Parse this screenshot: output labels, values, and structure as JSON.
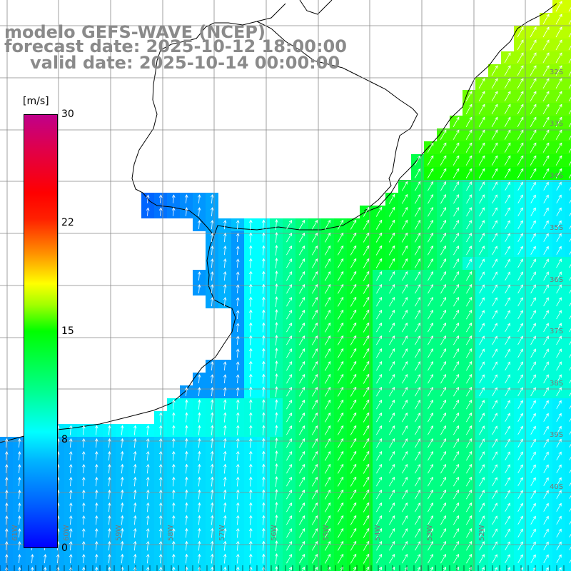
{
  "title": {
    "line1": "modelo GEFS-WAVE (NCEP)",
    "line2": "forecast date: 2025-10-12 18:00:00",
    "line3": "valid date: 2025-10-14 00:00:00"
  },
  "colorbar": {
    "unit": "[m/s]",
    "ticks": [
      "30",
      "22",
      "15",
      "8",
      "0"
    ],
    "min": 0,
    "max": 30
  },
  "lat_labels": [
    "32S",
    "33S",
    "34S",
    "35S",
    "36S",
    "37S",
    "38S",
    "39S",
    "40S"
  ],
  "lon_labels": [
    "61W",
    "60W",
    "59W",
    "58W",
    "57W",
    "56W",
    "55W",
    "54W",
    "53W",
    "52W"
  ],
  "wind": {
    "variable": "wind speed",
    "arrow_color": "#ffffff",
    "description_colors": {
      "weak": "#0060ff",
      "moderate": "#00ffff",
      "strong": "#00ff00",
      "max": "#e0ff00"
    }
  }
}
